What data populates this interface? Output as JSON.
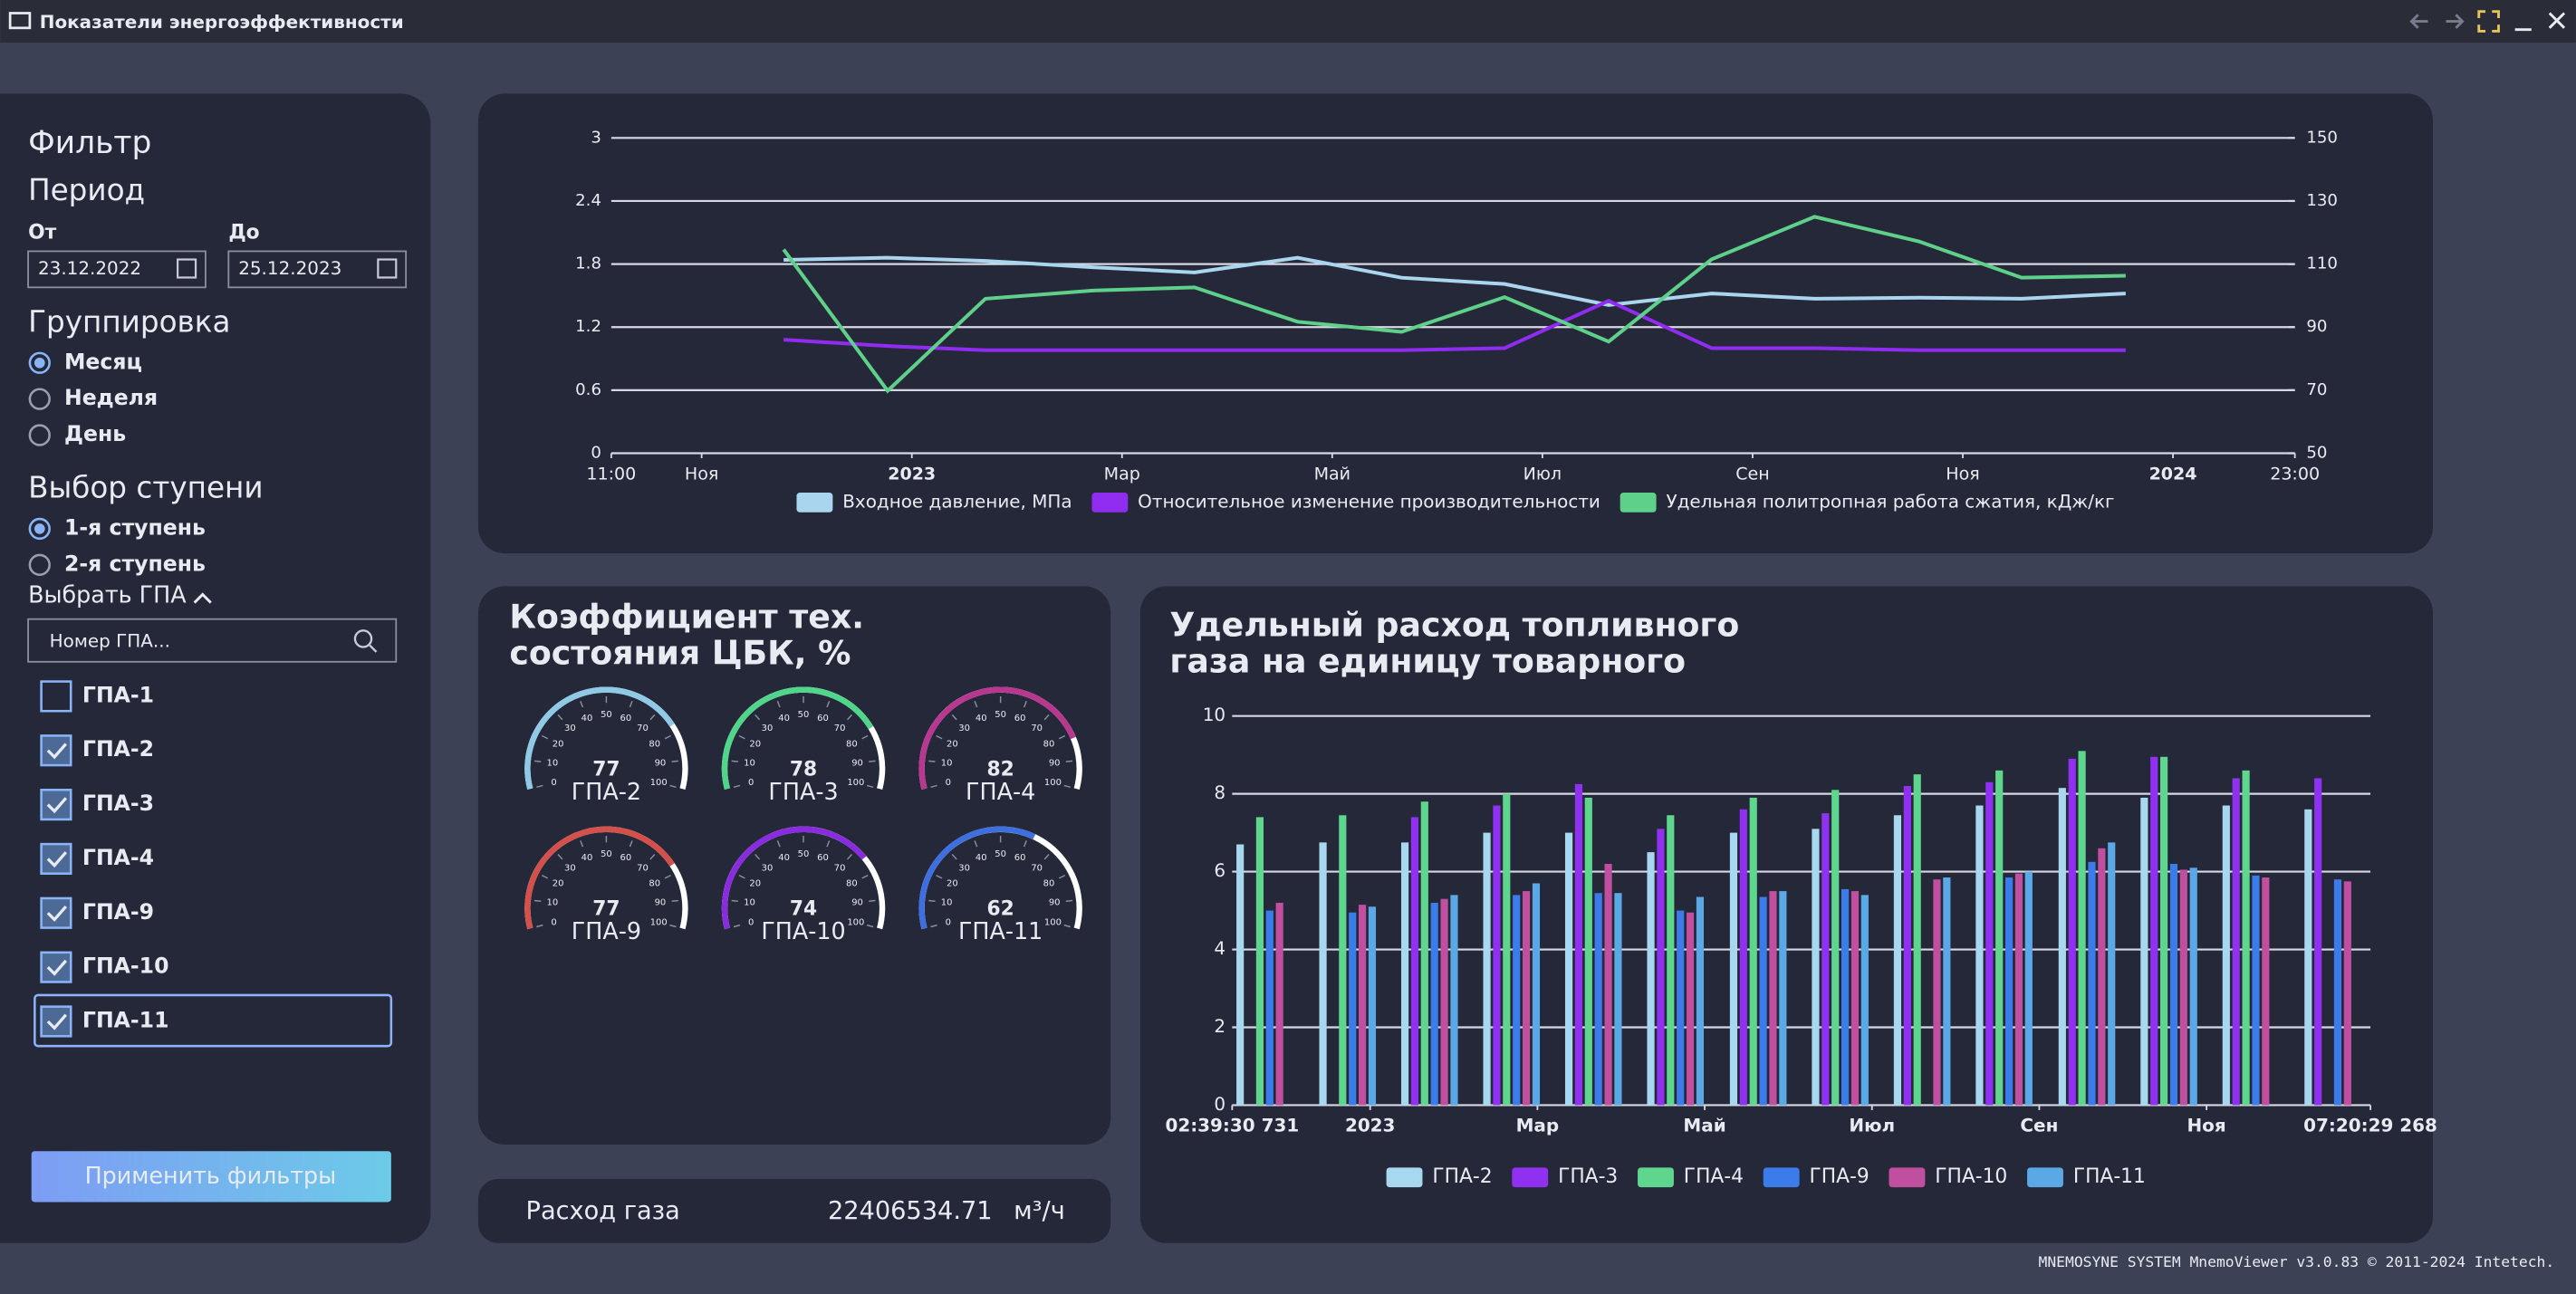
{
  "window": {
    "title": "Показатели энергоэффективности"
  },
  "filter": {
    "title": "Фильтр",
    "period": {
      "title": "Период",
      "from_label": "От",
      "to_label": "До",
      "from": "23.12.2022",
      "to": "25.12.2023"
    },
    "grouping": {
      "title": "Группировка",
      "options": [
        {
          "label": "Месяц",
          "selected": true
        },
        {
          "label": "Неделя",
          "selected": false
        },
        {
          "label": "День",
          "selected": false
        }
      ]
    },
    "stage": {
      "title": "Выбор ступени",
      "options": [
        {
          "label": "1-я ступень",
          "selected": true
        },
        {
          "label": "2-я ступень",
          "selected": false
        }
      ]
    },
    "units": {
      "title": "Выбрать ГПА",
      "search_placeholder": "Номер ГПА...",
      "items": [
        {
          "label": "ГПА-1",
          "checked": false
        },
        {
          "label": "ГПА-2",
          "checked": true
        },
        {
          "label": "ГПА-3",
          "checked": true
        },
        {
          "label": "ГПА-4",
          "checked": true
        },
        {
          "label": "ГПА-9",
          "checked": true
        },
        {
          "label": "ГПА-10",
          "checked": true
        },
        {
          "label": "ГПА-11",
          "checked": true,
          "focused": true
        }
      ]
    },
    "apply_button": "Применить фильтры"
  },
  "chart_data": [
    {
      "type": "line",
      "x": [
        0.78,
        1.77,
        2.7,
        3.72,
        4.69,
        5.67,
        6.66,
        7.64,
        8.63,
        9.61,
        10.59,
        11.58,
        12.56,
        13.55
      ],
      "xlim": [
        -0.86,
        15.16
      ],
      "xticks": [
        {
          "value": -0.86,
          "label": "11:00"
        },
        {
          "value": 0,
          "label": "Ноя"
        },
        {
          "value": 2,
          "label": "2023"
        },
        {
          "value": 4,
          "label": "Мар"
        },
        {
          "value": 6,
          "label": "Май"
        },
        {
          "value": 8,
          "label": "Июл"
        },
        {
          "value": 10,
          "label": "Сен"
        },
        {
          "value": 12,
          "label": "Ноя"
        },
        {
          "value": 14,
          "label": "2024"
        },
        {
          "value": 15.16,
          "label": "23:00"
        }
      ],
      "ylim": [
        0,
        3
      ],
      "yticks": [
        0,
        0.6,
        1.2,
        1.8,
        2.4,
        3
      ],
      "y2lim": [
        50,
        150
      ],
      "y2ticks": [
        50,
        70,
        90,
        110,
        130,
        150
      ],
      "grid": true,
      "legend": "bottom",
      "series": [
        {
          "name": "Входное давление, МПа",
          "color": "#a9d6ee",
          "values": [
            1.84,
            1.86,
            1.83,
            1.77,
            1.72,
            1.86,
            1.67,
            1.61,
            1.41,
            1.52,
            1.47,
            1.48,
            1.47,
            1.52
          ]
        },
        {
          "name": "Относительное изменение производительности",
          "color": "#8f2cf0",
          "values": [
            1.08,
            1.02,
            0.98,
            0.98,
            0.98,
            0.98,
            0.98,
            1.0,
            1.45,
            1.0,
            1.0,
            0.98,
            0.98,
            0.98
          ]
        },
        {
          "name": "Удельная политропная работа сжатия, кДж/кг",
          "color": "#5fd08a",
          "axis": "y2",
          "values": [
            114.6,
            69.8,
            99,
            101.6,
            102.6,
            91.7,
            88.5,
            99.5,
            85.4,
            111.5,
            125,
            117.2,
            105.7,
            106.3
          ]
        }
      ]
    },
    {
      "type": "gauge",
      "title_lines": [
        "Коэффициент тех.",
        "состояния ЦБК, %"
      ],
      "lim": [
        0,
        100
      ],
      "ticks": [
        0,
        10,
        20,
        30,
        40,
        50,
        60,
        70,
        80,
        90,
        100
      ],
      "items": [
        {
          "label": "ГПА-2",
          "value": 77,
          "color": "#8ecae6"
        },
        {
          "label": "ГПА-3",
          "value": 78,
          "color": "#4fd68a"
        },
        {
          "label": "ГПА-4",
          "value": 82,
          "color": "#b8378f"
        },
        {
          "label": "ГПА-9",
          "value": 77,
          "color": "#d4504a"
        },
        {
          "label": "ГПА-10",
          "value": 74,
          "color": "#8a2be2"
        },
        {
          "label": "ГПА-11",
          "value": 62,
          "color": "#3d6fe0"
        }
      ]
    },
    {
      "type": "bar",
      "title_lines": [
        "Удельный расход топливного",
        "газа на единицу товарного"
      ],
      "x": [
        -1.26,
        -0.27,
        0.71,
        1.69,
        2.67,
        3.65,
        4.64,
        5.62,
        6.6,
        7.58,
        8.57,
        9.55,
        10.53,
        11.51
      ],
      "xlim": [
        -1.65,
        11.96
      ],
      "xticks": [
        {
          "value": -1.65,
          "label": "02:39:30 731"
        },
        {
          "value": 0,
          "label": "2023"
        },
        {
          "value": 2,
          "label": "Мар"
        },
        {
          "value": 4,
          "label": "Май"
        },
        {
          "value": 6,
          "label": "Июл"
        },
        {
          "value": 8,
          "label": "Сен"
        },
        {
          "value": 10,
          "label": "Ноя"
        },
        {
          "value": 11.96,
          "label": "07:20:29 268"
        }
      ],
      "ylim": [
        0,
        10
      ],
      "yticks": [
        0,
        2,
        4,
        6,
        8,
        10
      ],
      "grid": true,
      "legend": "bottom",
      "series": [
        {
          "name": "ГПА-2",
          "color": "#a8d8f0",
          "values": [
            6.7,
            6.75,
            6.75,
            7.0,
            7.0,
            6.5,
            7.0,
            7.1,
            7.45,
            7.7,
            8.15,
            7.9,
            7.7,
            7.6
          ]
        },
        {
          "name": "ГПА-3",
          "color": "#9031f2",
          "values": [
            null,
            null,
            7.4,
            7.7,
            8.25,
            7.1,
            7.6,
            7.5,
            8.2,
            8.3,
            8.9,
            8.95,
            8.4,
            8.4
          ]
        },
        {
          "name": "ГПА-4",
          "color": "#5fd68e",
          "values": [
            7.4,
            7.45,
            7.8,
            8.0,
            7.9,
            7.45,
            7.9,
            8.1,
            8.5,
            8.6,
            9.1,
            8.95,
            8.6,
            null
          ]
        },
        {
          "name": "ГПА-9",
          "color": "#3b7bea",
          "values": [
            5.0,
            4.95,
            5.2,
            5.4,
            5.45,
            5.0,
            5.35,
            5.55,
            null,
            5.85,
            6.25,
            6.2,
            5.9,
            5.8
          ]
        },
        {
          "name": "ГПА-10",
          "color": "#c04fa0",
          "values": [
            5.2,
            5.15,
            5.3,
            5.5,
            6.2,
            4.95,
            5.5,
            5.5,
            5.8,
            5.95,
            6.6,
            6.05,
            5.85,
            5.75
          ]
        },
        {
          "name": "ГПА-11",
          "color": "#5aa9e6",
          "values": [
            null,
            5.1,
            5.4,
            5.7,
            5.45,
            5.35,
            5.5,
            5.4,
            5.85,
            6.0,
            6.75,
            6.1,
            null,
            null
          ]
        }
      ]
    }
  ],
  "gas_flow": {
    "label": "Расход газа",
    "value": 22406534.71,
    "unit": "м³/ч"
  },
  "footer": "MNEMOSYNE SYSTEM MnemoViewer v3.0.83 © 2011-2024 Intetech."
}
